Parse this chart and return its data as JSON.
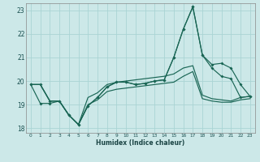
{
  "xlabel": "Humidex (Indice chaleur)",
  "bg_color": "#cce8e8",
  "grid_color": "#aad4d4",
  "line_color": "#1a6655",
  "xlim": [
    -0.5,
    23.5
  ],
  "ylim": [
    17.8,
    23.3
  ],
  "yticks": [
    18,
    19,
    20,
    21,
    22,
    23
  ],
  "xticks": [
    0,
    1,
    2,
    3,
    4,
    5,
    6,
    7,
    8,
    9,
    10,
    11,
    12,
    13,
    14,
    15,
    16,
    17,
    18,
    19,
    20,
    21,
    22,
    23
  ],
  "curve1_x": [
    0,
    1,
    2,
    3,
    4,
    5,
    6,
    7,
    8,
    9,
    10,
    11,
    12,
    13,
    14,
    15,
    16,
    17,
    18,
    19,
    20,
    21,
    22,
    23
  ],
  "curve1_y": [
    19.85,
    19.85,
    19.15,
    19.15,
    18.55,
    18.15,
    18.95,
    19.3,
    19.75,
    19.95,
    19.95,
    19.85,
    19.9,
    20.0,
    20.05,
    21.0,
    22.2,
    23.15,
    21.1,
    20.7,
    20.75,
    20.55,
    19.85,
    19.35
  ],
  "curve2_x": [
    0,
    1,
    2,
    3,
    4,
    5,
    6,
    7,
    8,
    9,
    10,
    11,
    12,
    13,
    14,
    15,
    16,
    17,
    18,
    19,
    20,
    21,
    22,
    23
  ],
  "curve2_y": [
    19.85,
    19.05,
    19.05,
    19.15,
    18.55,
    18.15,
    18.95,
    19.3,
    19.75,
    19.95,
    19.95,
    19.85,
    19.9,
    20.0,
    20.05,
    21.0,
    22.2,
    23.15,
    21.1,
    20.55,
    20.2,
    20.1,
    19.3,
    19.35
  ],
  "curve3_x": [
    0,
    1,
    2,
    3,
    4,
    5,
    6,
    7,
    8,
    9,
    10,
    11,
    12,
    13,
    14,
    15,
    16,
    17,
    18,
    19,
    20,
    21,
    22,
    23
  ],
  "curve3_y": [
    19.85,
    19.85,
    19.15,
    19.15,
    18.55,
    18.15,
    19.3,
    19.5,
    19.85,
    19.95,
    20.0,
    20.05,
    20.1,
    20.15,
    20.2,
    20.3,
    20.55,
    20.65,
    19.4,
    19.25,
    19.2,
    19.15,
    19.3,
    19.35
  ],
  "curve4_x": [
    0,
    1,
    2,
    3,
    4,
    5,
    6,
    7,
    8,
    9,
    10,
    11,
    12,
    13,
    14,
    15,
    16,
    17,
    18,
    19,
    20,
    21,
    22,
    23
  ],
  "curve4_y": [
    19.85,
    19.85,
    19.15,
    19.15,
    18.55,
    18.15,
    19.0,
    19.2,
    19.55,
    19.65,
    19.7,
    19.75,
    19.8,
    19.85,
    19.9,
    19.95,
    20.2,
    20.4,
    19.25,
    19.15,
    19.1,
    19.1,
    19.2,
    19.25
  ],
  "marker_indices1": [
    0,
    1,
    2,
    3,
    4,
    5,
    6,
    7,
    8,
    9,
    10,
    11,
    12,
    13,
    14,
    15,
    16,
    17,
    18,
    19,
    20,
    21,
    22,
    23
  ],
  "marker_indices2": [
    0,
    1,
    2,
    3,
    4,
    5,
    6,
    7,
    8,
    9,
    10,
    11,
    12,
    13,
    14,
    15,
    16,
    17,
    18,
    19,
    20,
    21,
    22,
    23
  ]
}
